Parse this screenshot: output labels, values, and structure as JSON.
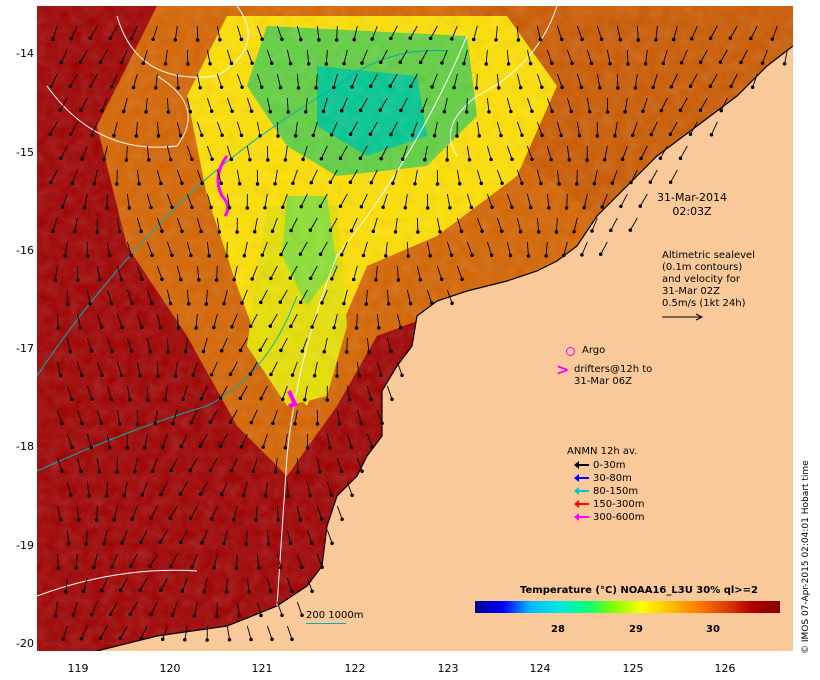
{
  "map": {
    "x_ticks": [
      "119",
      "120",
      "121",
      "122",
      "123",
      "124",
      "125",
      "126"
    ],
    "y_ticks": [
      "-14",
      "-15",
      "-16",
      "-17",
      "-18",
      "-19",
      "-20"
    ],
    "colors": {
      "land": "#f9c99a",
      "warm": "#a00000",
      "mid": "#d66400",
      "cool": "#ffff00",
      "coolest": "#00e080",
      "sea_contour": "#ffffff",
      "depth_contour": "#00b0b0"
    }
  },
  "annotations": {
    "timestamp_line1": "31-Mar-2014",
    "timestamp_line2": "02:03Z",
    "altimetry_lines": [
      "Altimetric sealevel",
      "(0.1m contours)",
      "and velocity for",
      "31-Mar 02Z",
      "0.5m/s (1kt 24h)"
    ],
    "argo_label": "Argo",
    "drifters_line1": "drifters@12h to",
    "drifters_line2": "31-Mar 06Z"
  },
  "legend": {
    "title": "ANMN 12h av.",
    "items": [
      {
        "label": "0-30m",
        "color": "#000000"
      },
      {
        "label": "30-80m",
        "color": "#0000ff"
      },
      {
        "label": "80-150m",
        "color": "#00c8c8"
      },
      {
        "label": "150-300m",
        "color": "#ff0000"
      },
      {
        "label": "300-600m",
        "color": "#ff00ff"
      }
    ]
  },
  "colorbar": {
    "title": "Temperature (°C) NOAA16_L3U 30% ql>=2",
    "labels": [
      "28",
      "29",
      "30"
    ]
  },
  "scale": {
    "label": "200  1000m"
  },
  "credit": "© IMOS 07-Apr-2015 02:04:01 Hobart time"
}
